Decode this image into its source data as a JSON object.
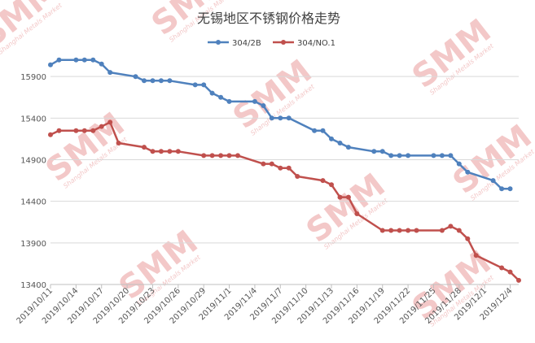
{
  "watermark": {
    "text": "SMM",
    "subtext": "Shanghai Metals Market"
  },
  "chart_data": {
    "type": "line",
    "title": "无锡地区不锈钢价格走势",
    "xlabel": "",
    "ylabel": "",
    "ylim": [
      13400,
      16400
    ],
    "yticks": [
      13400,
      13900,
      14400,
      14900,
      15400,
      15900
    ],
    "xrange": [
      "2019/10/11",
      "2019/12/5"
    ],
    "xticks": [
      "2019/10/11",
      "2019/10/14",
      "2019/10/17",
      "2019/10/20",
      "2019/10/23",
      "2019/10/26",
      "2019/10/29",
      "2019/11/1",
      "2019/11/4",
      "2019/11/7",
      "2019/11/10",
      "2019/11/13",
      "2019/11/16",
      "2019/11/19",
      "2019/11/22",
      "2019/11/25",
      "2019/11/28",
      "2019/12/1",
      "2019/12/4"
    ],
    "grid": {
      "y": true,
      "x": false
    },
    "legend": "top-center",
    "series": [
      {
        "name": "304/2B",
        "color": "#4f81bd",
        "points": [
          [
            "2019/10/11",
            16040
          ],
          [
            "2019/10/12",
            16100
          ],
          [
            "2019/10/14",
            16100
          ],
          [
            "2019/10/15",
            16100
          ],
          [
            "2019/10/16",
            16100
          ],
          [
            "2019/10/17",
            16050
          ],
          [
            "2019/10/18",
            15950
          ],
          [
            "2019/10/21",
            15900
          ],
          [
            "2019/10/22",
            15850
          ],
          [
            "2019/10/23",
            15850
          ],
          [
            "2019/10/24",
            15850
          ],
          [
            "2019/10/25",
            15850
          ],
          [
            "2019/10/28",
            15800
          ],
          [
            "2019/10/29",
            15800
          ],
          [
            "2019/10/30",
            15700
          ],
          [
            "2019/10/31",
            15650
          ],
          [
            "2019/11/1",
            15600
          ],
          [
            "2019/11/4",
            15600
          ],
          [
            "2019/11/5",
            15550
          ],
          [
            "2019/11/6",
            15400
          ],
          [
            "2019/11/7",
            15400
          ],
          [
            "2019/11/8",
            15400
          ],
          [
            "2019/11/11",
            15250
          ],
          [
            "2019/11/12",
            15250
          ],
          [
            "2019/11/13",
            15150
          ],
          [
            "2019/11/14",
            15100
          ],
          [
            "2019/11/15",
            15050
          ],
          [
            "2019/11/18",
            15000
          ],
          [
            "2019/11/19",
            15000
          ],
          [
            "2019/11/20",
            14950
          ],
          [
            "2019/11/21",
            14950
          ],
          [
            "2019/11/22",
            14950
          ],
          [
            "2019/11/25",
            14950
          ],
          [
            "2019/11/26",
            14950
          ],
          [
            "2019/11/27",
            14950
          ],
          [
            "2019/11/28",
            14850
          ],
          [
            "2019/11/29",
            14750
          ],
          [
            "2019/12/2",
            14650
          ],
          [
            "2019/12/3",
            14550
          ],
          [
            "2019/12/4",
            14550
          ]
        ]
      },
      {
        "name": "304/NO.1",
        "color": "#c0504d",
        "points": [
          [
            "2019/10/11",
            15200
          ],
          [
            "2019/10/12",
            15250
          ],
          [
            "2019/10/14",
            15250
          ],
          [
            "2019/10/15",
            15250
          ],
          [
            "2019/10/16",
            15250
          ],
          [
            "2019/10/17",
            15300
          ],
          [
            "2019/10/18",
            15350
          ],
          [
            "2019/10/19",
            15100
          ],
          [
            "2019/10/22",
            15050
          ],
          [
            "2019/10/23",
            15000
          ],
          [
            "2019/10/24",
            15000
          ],
          [
            "2019/10/25",
            15000
          ],
          [
            "2019/10/26",
            15000
          ],
          [
            "2019/10/29",
            14950
          ],
          [
            "2019/10/30",
            14950
          ],
          [
            "2019/10/31",
            14950
          ],
          [
            "2019/11/1",
            14950
          ],
          [
            "2019/11/2",
            14950
          ],
          [
            "2019/11/5",
            14850
          ],
          [
            "2019/11/6",
            14850
          ],
          [
            "2019/11/7",
            14800
          ],
          [
            "2019/11/8",
            14800
          ],
          [
            "2019/11/9",
            14700
          ],
          [
            "2019/11/12",
            14650
          ],
          [
            "2019/11/13",
            14600
          ],
          [
            "2019/11/14",
            14450
          ],
          [
            "2019/11/15",
            14450
          ],
          [
            "2019/11/16",
            14250
          ],
          [
            "2019/11/19",
            14050
          ],
          [
            "2019/11/20",
            14050
          ],
          [
            "2019/11/21",
            14050
          ],
          [
            "2019/11/22",
            14050
          ],
          [
            "2019/11/23",
            14050
          ],
          [
            "2019/11/26",
            14050
          ],
          [
            "2019/11/27",
            14100
          ],
          [
            "2019/11/28",
            14050
          ],
          [
            "2019/11/29",
            13950
          ],
          [
            "2019/11/30",
            13750
          ],
          [
            "2019/12/3",
            13600
          ],
          [
            "2019/12/4",
            13550
          ],
          [
            "2019/12/5",
            13450
          ]
        ]
      }
    ]
  }
}
